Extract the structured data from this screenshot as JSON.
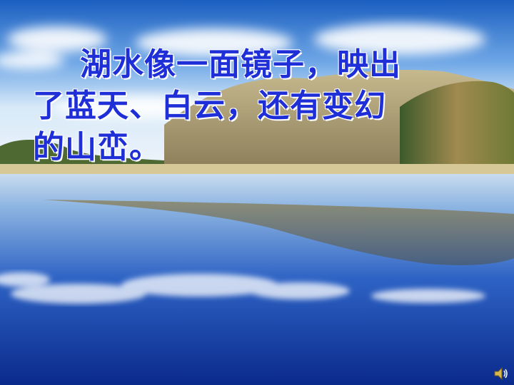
{
  "slide": {
    "lines": [
      "湖水像一面镜子，映出",
      "了蓝天、白云，还有变幻",
      "的山峦。"
    ]
  },
  "icons": {
    "audio": "speaker-icon"
  },
  "colors": {
    "text": "#1f2fd8",
    "sky_top": "#1b5fc0",
    "water_deep": "#0a2a8c"
  }
}
